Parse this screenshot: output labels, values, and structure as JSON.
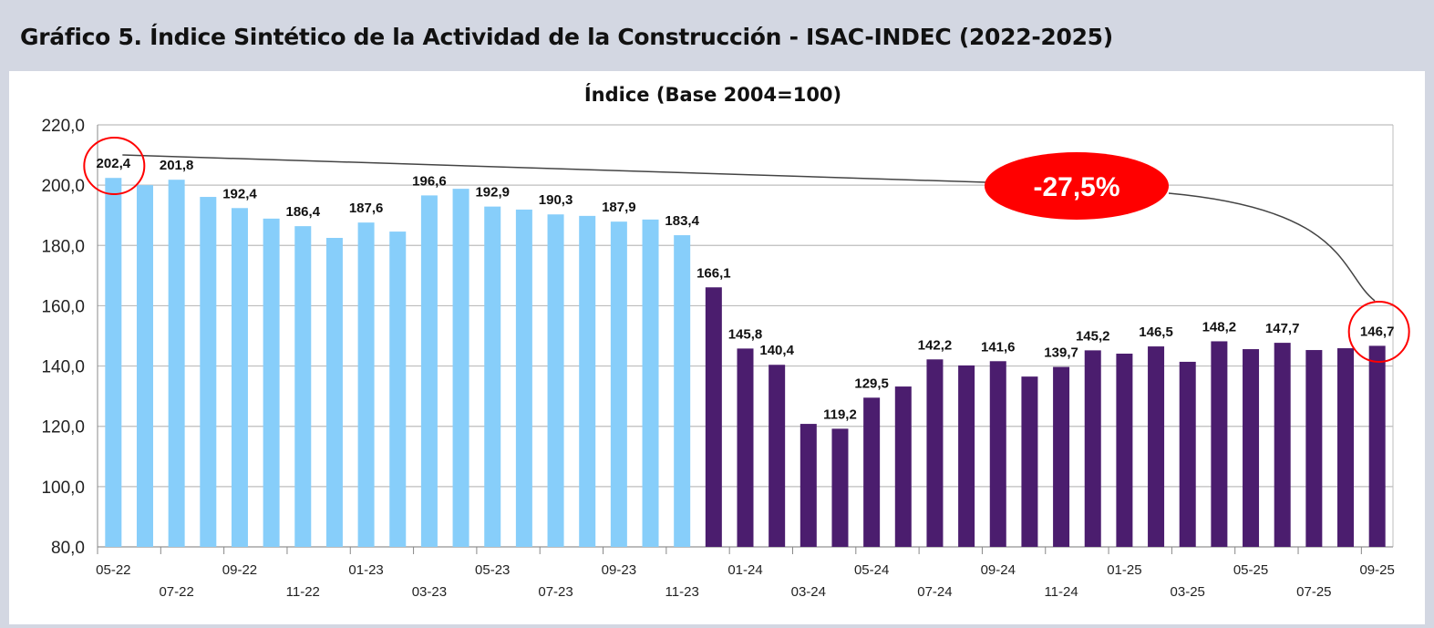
{
  "title": "Gráfico 5. Índice Sintético de la Actividad de la Construcción - ISAC-INDEC (2022-2025)",
  "chart_data": {
    "type": "bar",
    "title": "Índice (Base 2004=100)",
    "xlabel": "",
    "ylabel": "",
    "ylim": [
      80,
      220
    ],
    "yticks": [
      "80,0",
      "100,0",
      "120,0",
      "140,0",
      "160,0",
      "180,0",
      "200,0",
      "220,0"
    ],
    "ytick_values": [
      80,
      100,
      120,
      140,
      160,
      180,
      200,
      220
    ],
    "grid": true,
    "categories": [
      "05-22",
      "06-22",
      "07-22",
      "08-22",
      "09-22",
      "10-22",
      "11-22",
      "12-22",
      "01-23",
      "02-23",
      "03-23",
      "04-23",
      "05-23",
      "06-23",
      "07-23",
      "08-23",
      "09-23",
      "10-23",
      "11-23",
      "12-23",
      "01-24",
      "02-24",
      "03-24",
      "04-24",
      "05-24",
      "06-24",
      "07-24",
      "08-24",
      "09-24",
      "10-24",
      "11-24",
      "12-24",
      "01-25",
      "02-25",
      "03-25",
      "04-25",
      "05-25",
      "06-25",
      "07-25",
      "08-25",
      "09-25"
    ],
    "values": [
      202.4,
      200.0,
      201.8,
      196.1,
      192.4,
      188.9,
      186.4,
      182.5,
      187.6,
      184.6,
      196.6,
      198.8,
      192.9,
      191.9,
      190.3,
      189.8,
      187.9,
      188.6,
      183.4,
      166.1,
      145.8,
      140.4,
      120.8,
      119.2,
      129.5,
      133.2,
      142.2,
      140.2,
      141.6,
      136.5,
      139.7,
      145.2,
      144.1,
      146.5,
      141.4,
      148.2,
      145.6,
      147.7,
      145.3,
      145.9,
      146.7
    ],
    "data_labels": {
      "0": "202,4",
      "2": "201,8",
      "4": "192,4",
      "6": "186,4",
      "8": "187,6",
      "10": "196,6",
      "12": "192,9",
      "14": "190,3",
      "16": "187,9",
      "18": "183,4",
      "19": "166,1",
      "20": "145,8",
      "21": "140,4",
      "23": "119,2",
      "24": "129,5",
      "26": "142,2",
      "28": "141,6",
      "30": "139,7",
      "31": "145,2",
      "33": "146,5",
      "35": "148,2",
      "37": "147,7",
      "40": "146,7"
    },
    "series_split_index": 19,
    "colors": {
      "period_1": "#87cefa",
      "period_2": "#4b1d6e",
      "annotation": "#ff0000"
    },
    "annotation": {
      "text": "-27,5%",
      "from_index": 0,
      "to_index": 40
    }
  }
}
